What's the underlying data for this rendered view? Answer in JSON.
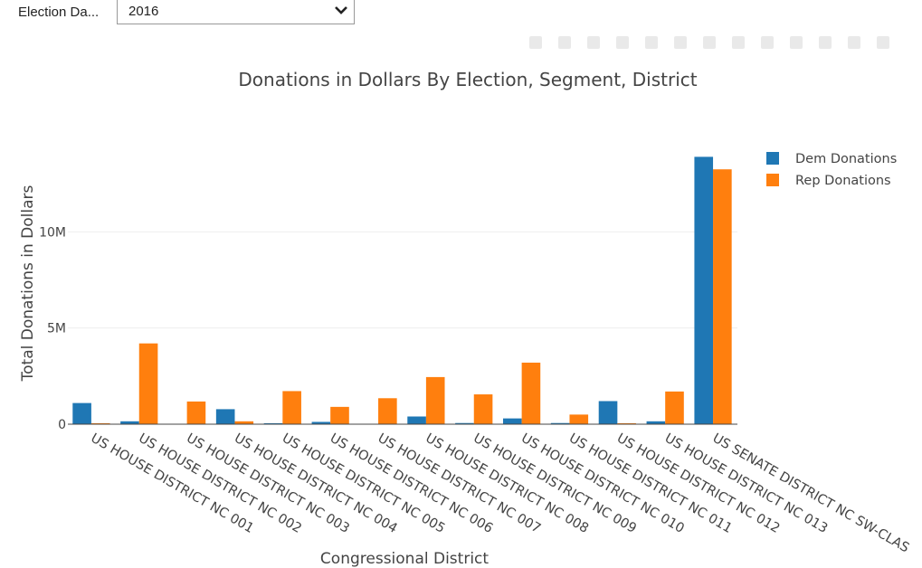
{
  "filter": {
    "label": "Election Da...",
    "selected": "2016"
  },
  "modebar_icons": [
    "camera-icon",
    "zoom-icon",
    "pan-icon",
    "box-select-icon",
    "lasso-icon",
    "zoom-in-icon",
    "zoom-out-icon",
    "autoscale-icon",
    "reset-axes-icon",
    "spike-lines-icon",
    "hover-closest-icon",
    "hover-compare-icon",
    "plotly-logo-icon"
  ],
  "chart_data": {
    "type": "bar",
    "title": "Donations in Dollars By Election, Segment, District",
    "xlabel": "Congressional District",
    "ylabel": "Total Donations in Dollars",
    "ylim": [
      0,
      15000000
    ],
    "yticks": [
      {
        "value": 0,
        "label": "0"
      },
      {
        "value": 5000000,
        "label": "5M"
      },
      {
        "value": 10000000,
        "label": "10M"
      }
    ],
    "grid": true,
    "legend_position": "top-right",
    "categories": [
      "US HOUSE DISTRICT NC 001",
      "US HOUSE DISTRICT NC 002",
      "US HOUSE DISTRICT NC 003",
      "US HOUSE DISTRICT NC 004",
      "US HOUSE DISTRICT NC 005",
      "US HOUSE DISTRICT NC 006",
      "US HOUSE DISTRICT NC 007",
      "US HOUSE DISTRICT NC 008",
      "US HOUSE DISTRICT NC 009",
      "US HOUSE DISTRICT NC 010",
      "US HOUSE DISTRICT NC 011",
      "US HOUSE DISTRICT NC 012",
      "US HOUSE DISTRICT NC 013",
      "US SENATE DISTRICT NC SW-CLAS"
    ],
    "series": [
      {
        "name": "Dem Donations",
        "color": "#1f77b4",
        "values": [
          1100000,
          150000,
          10000,
          780000,
          50000,
          120000,
          10000,
          400000,
          60000,
          300000,
          60000,
          1200000,
          150000,
          13900000
        ]
      },
      {
        "name": "Rep Donations",
        "color": "#ff7f0e",
        "values": [
          50000,
          4200000,
          1180000,
          150000,
          1720000,
          900000,
          1350000,
          2450000,
          1550000,
          3200000,
          500000,
          50000,
          1700000,
          13250000
        ]
      }
    ]
  }
}
